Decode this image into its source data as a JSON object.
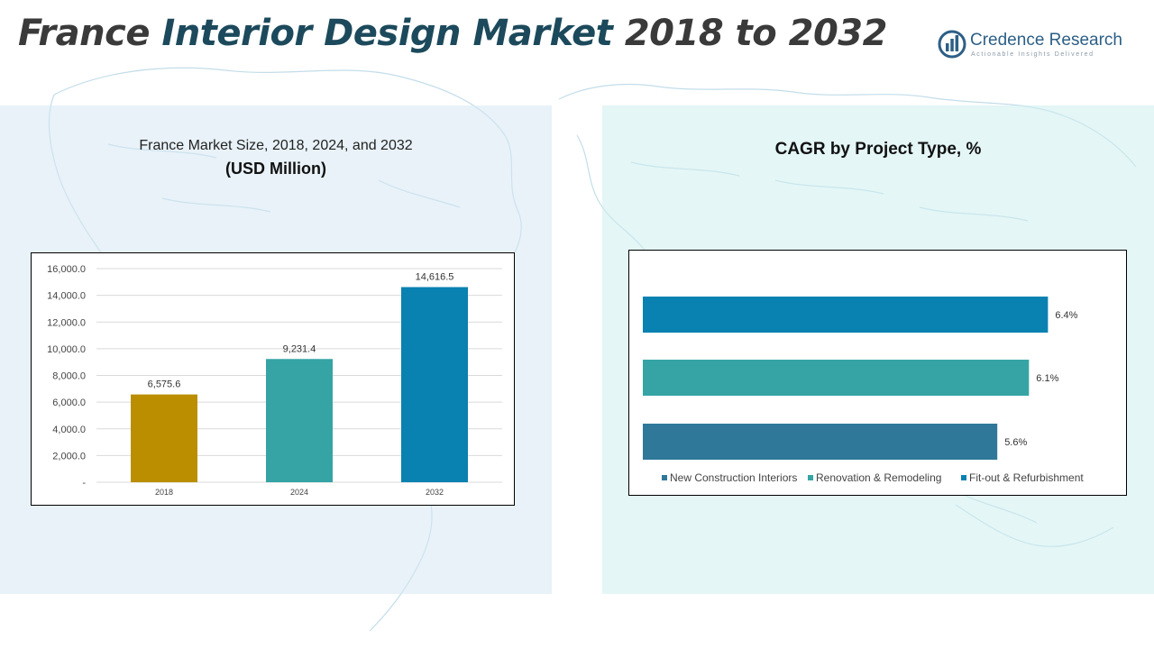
{
  "page": {
    "title_prefix": "France ",
    "title_accent": "Interior Design Market",
    "title_suffix": " 2018 to 2032"
  },
  "logo": {
    "name": "Credence Research",
    "tagline": "Actionable Insights Delivered"
  },
  "colors": {
    "gold": "#bb8e00",
    "teal": "#36a4a4",
    "blue": "#0981b1",
    "steel": "#2f7899"
  },
  "chart_data": [
    {
      "type": "bar",
      "title": "France Market Size, 2018, 2024, and 2032",
      "ylabel": "(USD Million)",
      "xlabel": "",
      "categories": [
        "2018",
        "2024",
        "2032"
      ],
      "values": [
        6575.6,
        9231.4,
        14616.5
      ],
      "value_labels": [
        "6,575.6",
        "9,231.4",
        "14,616.5"
      ],
      "bar_colors": [
        "#bb8e00",
        "#36a4a4",
        "#0981b1"
      ],
      "ylim": [
        0,
        16000
      ],
      "yticks": [
        0,
        2000,
        4000,
        6000,
        8000,
        10000,
        12000,
        14000,
        16000
      ],
      "ytick_labels": [
        "-",
        "2,000.0",
        "4,000.0",
        "6,000.0",
        "8,000.0",
        "10,000.0",
        "12,000.0",
        "14,000.0",
        "16,000.0"
      ],
      "grid": true
    },
    {
      "type": "bar",
      "orientation": "horizontal",
      "title": "CAGR by Project Type, %",
      "categories": [
        "New Construction Interiors",
        "Renovation & Remodeling",
        "Fit-out & Refurbishment"
      ],
      "values": [
        5.6,
        6.1,
        6.4
      ],
      "value_labels": [
        "5.6%",
        "6.1%",
        "6.4%"
      ],
      "bar_colors": [
        "#2f7899",
        "#36a4a4",
        "#0981b1"
      ],
      "legend": [
        "New Construction Interiors",
        "Renovation & Remodeling",
        "Fit-out & Refurbishment"
      ],
      "legend_position": "bottom"
    }
  ]
}
